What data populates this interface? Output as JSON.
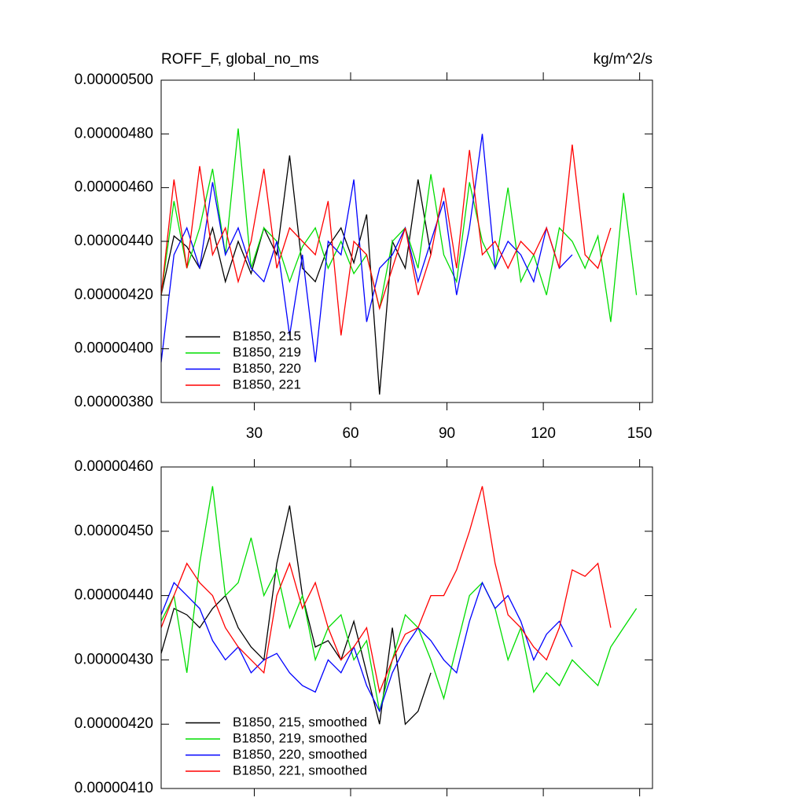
{
  "chart_data": [
    {
      "type": "line",
      "title": "ROFF_F, global_no_ms",
      "units_label": "kg/m^2/s",
      "x": [
        1,
        5,
        9,
        13,
        17,
        21,
        25,
        29,
        33,
        37,
        41,
        45,
        49,
        53,
        57,
        61,
        65,
        69,
        73,
        77,
        81,
        85,
        89,
        93,
        97,
        101,
        105,
        109,
        113,
        117,
        121,
        125,
        129,
        133,
        137,
        141,
        145,
        149
      ],
      "xlim": [
        1,
        154
      ],
      "xticks": [
        30,
        60,
        90,
        120,
        150
      ],
      "xtick_labels": true,
      "ylim": [
        3.8e-06,
        5e-06
      ],
      "yticks": [
        {
          "value": 3.8e-06,
          "label": "0.00000380"
        },
        {
          "value": 4e-06,
          "label": "0.00000400"
        },
        {
          "value": 4.2e-06,
          "label": "0.00000420"
        },
        {
          "value": 4.4e-06,
          "label": "0.00000440"
        },
        {
          "value": 4.6e-06,
          "label": "0.00000460"
        },
        {
          "value": 4.8e-06,
          "label": "0.00000480"
        },
        {
          "value": 5e-06,
          "label": "0.00000500"
        }
      ],
      "legend": "lower left",
      "series": [
        {
          "name": "B1850, 215",
          "color": "#000000",
          "values": [
            4.2e-06,
            4.42e-06,
            4.38e-06,
            4.3e-06,
            4.45e-06,
            4.25e-06,
            4.4e-06,
            4.28e-06,
            4.45e-06,
            4.35e-06,
            4.72e-06,
            4.3e-06,
            4.25e-06,
            4.38e-06,
            4.45e-06,
            4.32e-06,
            4.5e-06,
            3.83e-06,
            4.4e-06,
            4.3e-06,
            4.63e-06,
            4.35e-06,
            null,
            null,
            null,
            null,
            null,
            null,
            null,
            null,
            null,
            null,
            null,
            null,
            null,
            null,
            null,
            null
          ]
        },
        {
          "name": "B1850, 219",
          "color": "#00dd00",
          "values": [
            4.2e-06,
            4.55e-06,
            4.3e-06,
            4.45e-06,
            4.67e-06,
            4.35e-06,
            4.82e-06,
            4.3e-06,
            4.45e-06,
            4.4e-06,
            4.25e-06,
            4.38e-06,
            4.45e-06,
            4.3e-06,
            4.4e-06,
            4.28e-06,
            4.35e-06,
            4.15e-06,
            4.4e-06,
            4.45e-06,
            4.3e-06,
            4.65e-06,
            4.35e-06,
            4.25e-06,
            4.62e-06,
            4.4e-06,
            4.3e-06,
            4.6e-06,
            4.25e-06,
            4.35e-06,
            4.2e-06,
            4.45e-06,
            4.4e-06,
            4.3e-06,
            4.42e-06,
            4.1e-06,
            4.58e-06,
            4.2e-06
          ]
        },
        {
          "name": "B1850, 220",
          "color": "#0000ff",
          "values": [
            3.95e-06,
            4.35e-06,
            4.45e-06,
            4.3e-06,
            4.62e-06,
            4.35e-06,
            4.45e-06,
            4.3e-06,
            4.25e-06,
            4.4e-06,
            4.05e-06,
            4.35e-06,
            3.95e-06,
            4.4e-06,
            4.35e-06,
            4.63e-06,
            4.1e-06,
            4.3e-06,
            4.35e-06,
            4.45e-06,
            4.25e-06,
            4.4e-06,
            4.55e-06,
            4.2e-06,
            4.45e-06,
            4.8e-06,
            4.3e-06,
            4.4e-06,
            4.35e-06,
            4.25e-06,
            4.45e-06,
            4.3e-06,
            4.35e-06,
            null,
            null,
            null,
            null,
            null
          ]
        },
        {
          "name": "B1850, 221",
          "color": "#ff0000",
          "values": [
            4.2e-06,
            4.63e-06,
            4.3e-06,
            4.68e-06,
            4.35e-06,
            4.45e-06,
            4.25e-06,
            4.4e-06,
            4.67e-06,
            4.3e-06,
            4.45e-06,
            4.4e-06,
            4.35e-06,
            4.55e-06,
            4.05e-06,
            4.4e-06,
            4.35e-06,
            4.15e-06,
            4.3e-06,
            4.45e-06,
            4.2e-06,
            4.35e-06,
            4.6e-06,
            4.3e-06,
            4.74e-06,
            4.35e-06,
            4.4e-06,
            4.3e-06,
            4.4e-06,
            4.35e-06,
            4.45e-06,
            4.3e-06,
            4.76e-06,
            4.35e-06,
            4.3e-06,
            4.45e-06,
            null,
            null
          ]
        }
      ]
    },
    {
      "type": "line",
      "x": [
        1,
        5,
        9,
        13,
        17,
        21,
        25,
        29,
        33,
        37,
        41,
        45,
        49,
        53,
        57,
        61,
        65,
        69,
        73,
        77,
        81,
        85,
        89,
        93,
        97,
        101,
        105,
        109,
        113,
        117,
        121,
        125,
        129,
        133,
        137,
        141,
        145,
        149
      ],
      "xlim": [
        1,
        154
      ],
      "xticks": [
        30,
        60,
        90,
        120,
        150
      ],
      "xtick_labels": false,
      "ylim": [
        4.1e-06,
        4.6e-06
      ],
      "yticks": [
        {
          "value": 4.1e-06,
          "label": "0.00000410"
        },
        {
          "value": 4.2e-06,
          "label": "0.00000420"
        },
        {
          "value": 4.3e-06,
          "label": "0.00000430"
        },
        {
          "value": 4.4e-06,
          "label": "0.00000440"
        },
        {
          "value": 4.5e-06,
          "label": "0.00000450"
        },
        {
          "value": 4.6e-06,
          "label": "0.00000460"
        }
      ],
      "legend": "lower left",
      "series": [
        {
          "name": "B1850, 215, smoothed",
          "color": "#000000",
          "values": [
            4.31e-06,
            4.38e-06,
            4.37e-06,
            4.35e-06,
            4.38e-06,
            4.4e-06,
            4.35e-06,
            4.32e-06,
            4.3e-06,
            4.45e-06,
            4.54e-06,
            4.4e-06,
            4.32e-06,
            4.33e-06,
            4.3e-06,
            4.36e-06,
            4.28e-06,
            4.2e-06,
            4.35e-06,
            4.2e-06,
            4.22e-06,
            4.28e-06,
            null,
            null,
            null,
            null,
            null,
            null,
            null,
            null,
            null,
            null,
            null,
            null,
            null,
            null,
            null,
            null
          ]
        },
        {
          "name": "B1850, 219, smoothed",
          "color": "#00dd00",
          "values": [
            4.36e-06,
            4.4e-06,
            4.28e-06,
            4.45e-06,
            4.57e-06,
            4.4e-06,
            4.42e-06,
            4.49e-06,
            4.4e-06,
            4.44e-06,
            4.35e-06,
            4.4e-06,
            4.3e-06,
            4.35e-06,
            4.37e-06,
            4.3e-06,
            4.33e-06,
            4.22e-06,
            4.3e-06,
            4.37e-06,
            4.35e-06,
            4.3e-06,
            4.24e-06,
            4.32e-06,
            4.4e-06,
            4.42e-06,
            4.38e-06,
            4.3e-06,
            4.35e-06,
            4.25e-06,
            4.28e-06,
            4.26e-06,
            4.3e-06,
            4.28e-06,
            4.26e-06,
            4.32e-06,
            4.35e-06,
            4.38e-06
          ]
        },
        {
          "name": "B1850, 220, smoothed",
          "color": "#0000ff",
          "values": [
            4.37e-06,
            4.42e-06,
            4.4e-06,
            4.38e-06,
            4.33e-06,
            4.3e-06,
            4.32e-06,
            4.28e-06,
            4.3e-06,
            4.31e-06,
            4.28e-06,
            4.26e-06,
            4.25e-06,
            4.3e-06,
            4.28e-06,
            4.32e-06,
            4.26e-06,
            4.22e-06,
            4.28e-06,
            4.32e-06,
            4.35e-06,
            4.33e-06,
            4.3e-06,
            4.28e-06,
            4.36e-06,
            4.42e-06,
            4.38e-06,
            4.4e-06,
            4.36e-06,
            4.3e-06,
            4.34e-06,
            4.36e-06,
            4.32e-06,
            null,
            null,
            null,
            null,
            null
          ]
        },
        {
          "name": "B1850, 221, smoothed",
          "color": "#ff0000",
          "values": [
            4.35e-06,
            4.4e-06,
            4.45e-06,
            4.42e-06,
            4.4e-06,
            4.35e-06,
            4.32e-06,
            4.3e-06,
            4.28e-06,
            4.4e-06,
            4.45e-06,
            4.38e-06,
            4.42e-06,
            4.35e-06,
            4.3e-06,
            4.32e-06,
            4.35e-06,
            4.25e-06,
            4.3e-06,
            4.34e-06,
            4.35e-06,
            4.4e-06,
            4.4e-06,
            4.44e-06,
            4.5e-06,
            4.57e-06,
            4.45e-06,
            4.37e-06,
            4.35e-06,
            4.32e-06,
            4.3e-06,
            4.35e-06,
            4.44e-06,
            4.43e-06,
            4.45e-06,
            4.35e-06,
            null,
            null
          ]
        }
      ]
    }
  ]
}
